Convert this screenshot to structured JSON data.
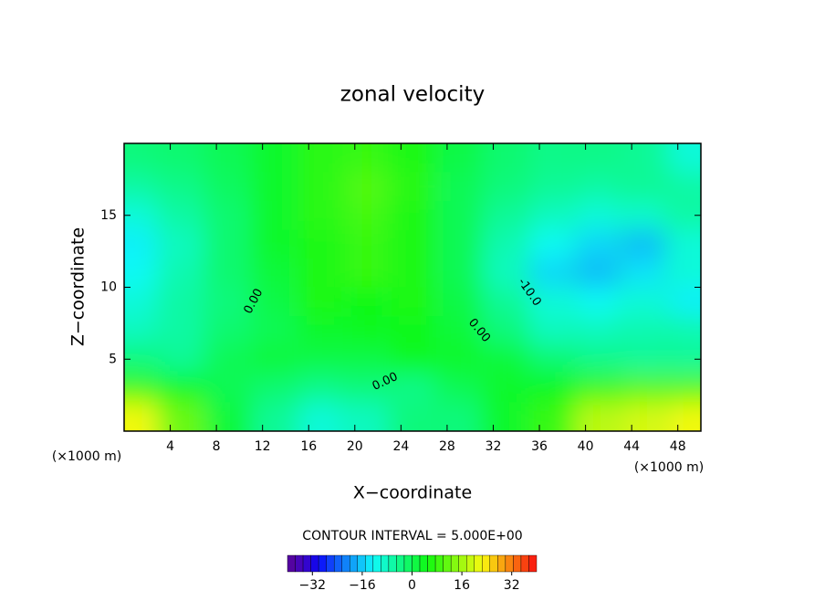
{
  "chart_data": {
    "type": "contour",
    "title": "zonal velocity",
    "xlabel": "X−coordinate",
    "ylabel": "Z−coordinate",
    "x_unit": "(×1000 m)",
    "x_unit_right": "(×1000 m)",
    "xlim": [
      0,
      50
    ],
    "ylim": [
      0,
      20
    ],
    "xticks": [
      4,
      8,
      12,
      16,
      20,
      24,
      28,
      32,
      36,
      40,
      44,
      48
    ],
    "yticks": [
      5,
      10,
      15
    ],
    "x": [
      1,
      5,
      9,
      13,
      17,
      21,
      25,
      29,
      33,
      37,
      41,
      45,
      49
    ],
    "y": [
      1,
      3,
      5,
      7,
      9,
      11,
      13,
      15,
      17,
      19
    ],
    "z": [
      [
        22,
        12,
        2,
        -5,
        -10,
        -8,
        -3,
        -3,
        3,
        8,
        18,
        20,
        22
      ],
      [
        8,
        4,
        0,
        -2,
        -4,
        -3,
        -4,
        0,
        3,
        4,
        8,
        10,
        10
      ],
      [
        -3,
        -5,
        0,
        2,
        1,
        1,
        4,
        3,
        2,
        -2,
        -4,
        -5,
        -5
      ],
      [
        -8,
        -6,
        -2,
        0,
        3,
        4,
        5,
        2,
        -3,
        -8,
        -8,
        -7,
        -7
      ],
      [
        -10,
        -6,
        -3,
        1,
        6,
        5,
        6,
        1,
        -5,
        -10,
        -12,
        -10,
        -13
      ],
      [
        -12,
        -7,
        -2,
        2,
        6,
        8,
        6,
        0,
        -8,
        -15,
        -17,
        -14,
        -10
      ],
      [
        -13,
        -8,
        -2,
        3,
        6,
        8,
        6,
        0,
        -7,
        -12,
        -15,
        -17,
        -10
      ],
      [
        -10,
        -6,
        -2,
        3,
        7,
        9,
        6,
        0,
        -5,
        -8,
        -10,
        -9,
        -6
      ],
      [
        -6,
        -4,
        -1,
        3,
        7,
        10,
        7,
        0,
        -3,
        -5,
        -6,
        -5,
        -6
      ],
      [
        -3,
        -2,
        0,
        3,
        7,
        8,
        6,
        1,
        -2,
        -4,
        -4,
        -5,
        -10
      ]
    ],
    "contour_labels": [
      "0.00",
      "0.00",
      "0.00",
      "-10.0"
    ],
    "contour_interval_text": "CONTOUR INTERVAL = 5.000E+00",
    "colorbar": {
      "lim": [
        -40,
        40
      ],
      "ticks": [
        {
          "value": -32,
          "label": "−32"
        },
        {
          "value": -16,
          "label": "−16"
        },
        0,
        16,
        32
      ]
    }
  }
}
